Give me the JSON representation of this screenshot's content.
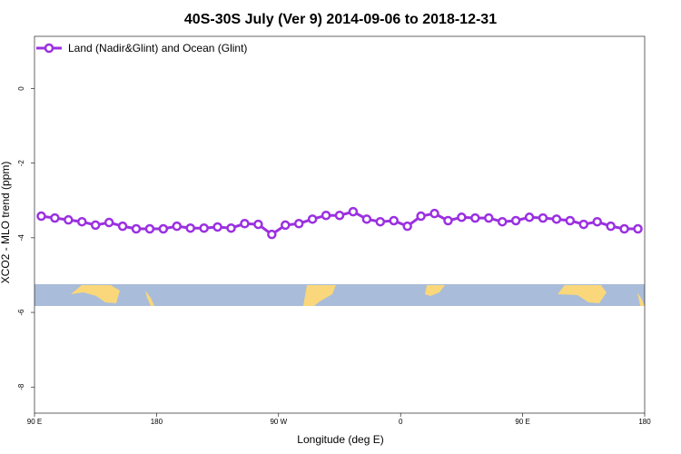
{
  "chart_data": {
    "type": "line",
    "title": "40S-30S July (Ver 9)   2014-09-06 to 2018-12-31",
    "xlabel": "Longitude (deg E)",
    "ylabel": "XCO2 - MLO trend (ppm)",
    "x": [
      95,
      105,
      115,
      125,
      135,
      145,
      155,
      165,
      175,
      185,
      195,
      205,
      215,
      225,
      235,
      245,
      255,
      265,
      275,
      285,
      295,
      305,
      315,
      325,
      335,
      345,
      355,
      365,
      375,
      385,
      395,
      405,
      415,
      425,
      435,
      445,
      455,
      465,
      475,
      485,
      495,
      505,
      515,
      525,
      535
    ],
    "series": [
      {
        "name": "Land (Nadir&Glint) and Ocean (Glint)",
        "color": "#9b30e0",
        "values": [
          -3.42,
          -3.47,
          -3.52,
          -3.57,
          -3.66,
          -3.59,
          -3.69,
          -3.76,
          -3.76,
          -3.76,
          -3.69,
          -3.74,
          -3.74,
          -3.71,
          -3.74,
          -3.62,
          -3.64,
          -3.91,
          -3.66,
          -3.62,
          -3.5,
          -3.4,
          -3.4,
          -3.3,
          -3.5,
          -3.57,
          -3.54,
          -3.69,
          -3.42,
          -3.35,
          -3.54,
          -3.45,
          -3.47,
          -3.47,
          -3.57,
          -3.54,
          -3.45,
          -3.47,
          -3.5,
          -3.54,
          -3.64,
          -3.57,
          -3.69,
          -3.76,
          -3.76
        ]
      }
    ],
    "xlim": [
      90,
      540
    ],
    "xticks": [
      {
        "value": 90,
        "label": "90 E"
      },
      180,
      {
        "value": 270,
        "label": "90 W"
      },
      {
        "value": 360,
        "label": "0"
      },
      {
        "value": 450,
        "label": "90 E"
      },
      {
        "value": 540,
        "label": "180"
      }
    ],
    "ylim": [
      -8.7,
      1.4
    ],
    "yticks": [
      0,
      -2,
      -4,
      -6,
      -8
    ],
    "legend": "top-left"
  }
}
